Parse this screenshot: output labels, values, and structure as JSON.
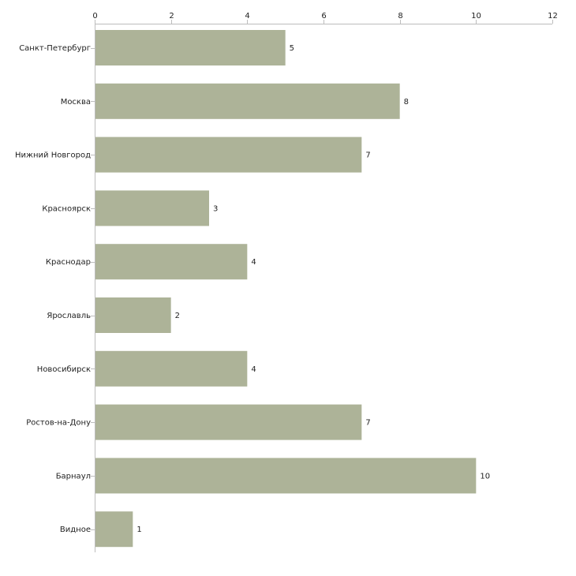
{
  "chart_data": {
    "type": "bar",
    "orientation": "horizontal",
    "categories": [
      "Санкт-Петербург",
      "Москва",
      "Нижний Новгород",
      "Красноярск",
      "Краснодар",
      "Ярославль",
      "Новосибирск",
      "Ростов-на-Дону",
      "Барнаул",
      "Видное"
    ],
    "values": [
      5,
      8,
      7,
      3,
      4,
      2,
      4,
      7,
      10,
      1
    ],
    "xlim": [
      0,
      12
    ],
    "xticks": [
      0,
      2,
      4,
      6,
      8,
      10,
      12
    ],
    "xtick_labels": [
      "0",
      "2",
      "4",
      "6",
      "8",
      "10",
      "12"
    ],
    "value_labels": [
      "5",
      "8",
      "7",
      "3",
      "4",
      "2",
      "4",
      "7",
      "10",
      "1"
    ],
    "axis_position": "top",
    "grid": false,
    "bar_color": "#adb398",
    "axis_color": "#bdbdbd",
    "title": "",
    "xlabel": "",
    "ylabel": ""
  }
}
